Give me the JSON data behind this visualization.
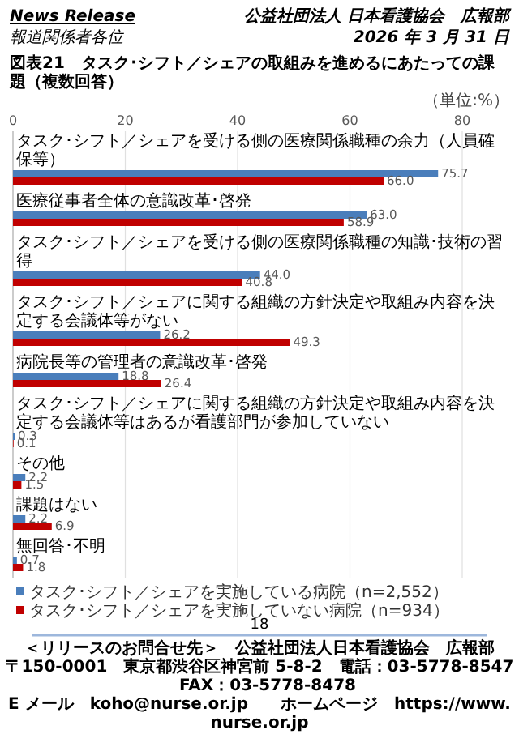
{
  "chart_data": {
    "type": "bar",
    "orientation": "horizontal",
    "title": "図表21　タスク･シフト／シェアの取組みを進めるにあたっての課題（複数回答）",
    "annotations": [
      "News Release",
      "報道関係者各位",
      "公益社団法人 日本看護協会　広報部",
      "2026 年 3 月 31 日",
      "（単位:%）",
      "18",
      "＜リリースのお問合せ先＞　公益社団法人日本看護協会　広報部",
      "〒150-0001　東京都渋谷区神宮前 5-8-2　電話：03-5778-8547　FAX：03-5778-8478",
      "E メール　koho@nurse.or.jp　　ホームページ　https://www.nurse.or.jp"
    ],
    "categories": [
      "タスク･シフト／シェアを受ける側の医療関係職種の余力（人員確保等）",
      "医療従事者全体の意識改革･啓発",
      "タスク･シフト／シェアを受ける側の医療関係職種の知識･技術の習得",
      "タスク･シフト／シェアに関する組織の方針決定や取組み内容を決定する会議体等がない",
      "病院長等の管理者の意識改革･啓発",
      "タスク･シフト／シェアに関する組織の方針決定や取組み内容を決定する会議体等はあるが看護部門が参加していない",
      "その他",
      "課題はない",
      "無回答･不明"
    ],
    "series": [
      {
        "name": "タスク･シフト／シェアを実施している病院（n=2,552）",
        "color": "#4a7ebb",
        "values": [
          75.7,
          63.0,
          44.0,
          26.2,
          18.8,
          0.3,
          2.2,
          2.2,
          0.7
        ],
        "value_labels": [
          "75.7",
          "63.0",
          "44.0",
          "26.2",
          "18.8",
          "0.3",
          "2.2",
          "2.2",
          "0.7"
        ]
      },
      {
        "name": "タスク･シフト／シェアを実施していない病院（n=934）",
        "color": "#c00000",
        "values": [
          66.0,
          58.9,
          40.8,
          49.3,
          26.4,
          0.1,
          1.5,
          6.9,
          1.8
        ],
        "value_labels": [
          "66.0",
          "58.9",
          "40.8",
          "49.3",
          "26.4",
          "0.1",
          "1.5",
          "6.9",
          "1.8"
        ]
      }
    ],
    "xlim": [
      0,
      80
    ],
    "xticks": [
      0,
      20,
      40,
      60,
      80
    ],
    "grid": "x",
    "legend": "bottom"
  }
}
